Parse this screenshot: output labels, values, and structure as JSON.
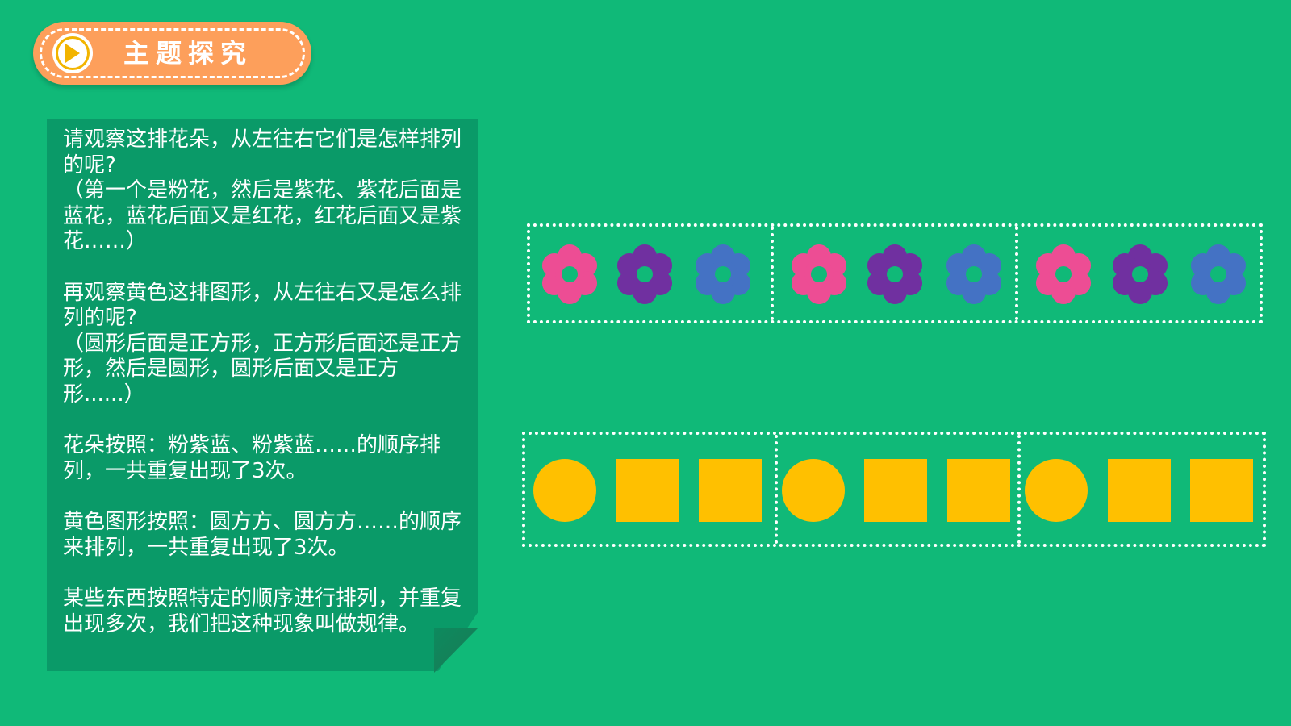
{
  "title": {
    "text": "主题探究",
    "icon": "play-icon"
  },
  "card": {
    "paragraphs": [
      {
        "question": "请观察这排花朵，从左往右它们是怎样排列的呢?",
        "answer": "（第一个是粉花，然后是紫花、紫花后面是蓝花，蓝花后面又是红花，红花后面又是紫花……）"
      },
      {
        "question": "再观察黄色这排图形，从左往右又是怎么排列的呢?",
        "answer": "（圆形后面是正方形，正方形后面还是正方形，然后是圆形，圆形后面又是正方形......）"
      },
      {
        "text": "花朵按照：粉紫蓝、粉紫蓝……的顺序排列，一共重复出现了3次。"
      },
      {
        "text": "黄色图形按照：圆方方、圆方方……的顺序来排列，一共重复出现了3次。"
      },
      {
        "text": "某些东西按照特定的顺序进行排列，并重复出现多次，我们把这种现象叫做规律。"
      }
    ]
  },
  "flower_row": {
    "groups": 3,
    "pattern": [
      "pink",
      "purple",
      "blue"
    ],
    "colors": {
      "pink": "#ed4d94",
      "purple": "#7030a0",
      "blue": "#4472c4"
    }
  },
  "shape_row": {
    "groups": 3,
    "pattern": [
      "circle",
      "square",
      "square"
    ],
    "color": "#ffc000"
  },
  "colors": {
    "background": "#10b978",
    "card": "#0a9a68",
    "title_pill": "#fd9f5b",
    "play_accent": "#f2b400"
  }
}
